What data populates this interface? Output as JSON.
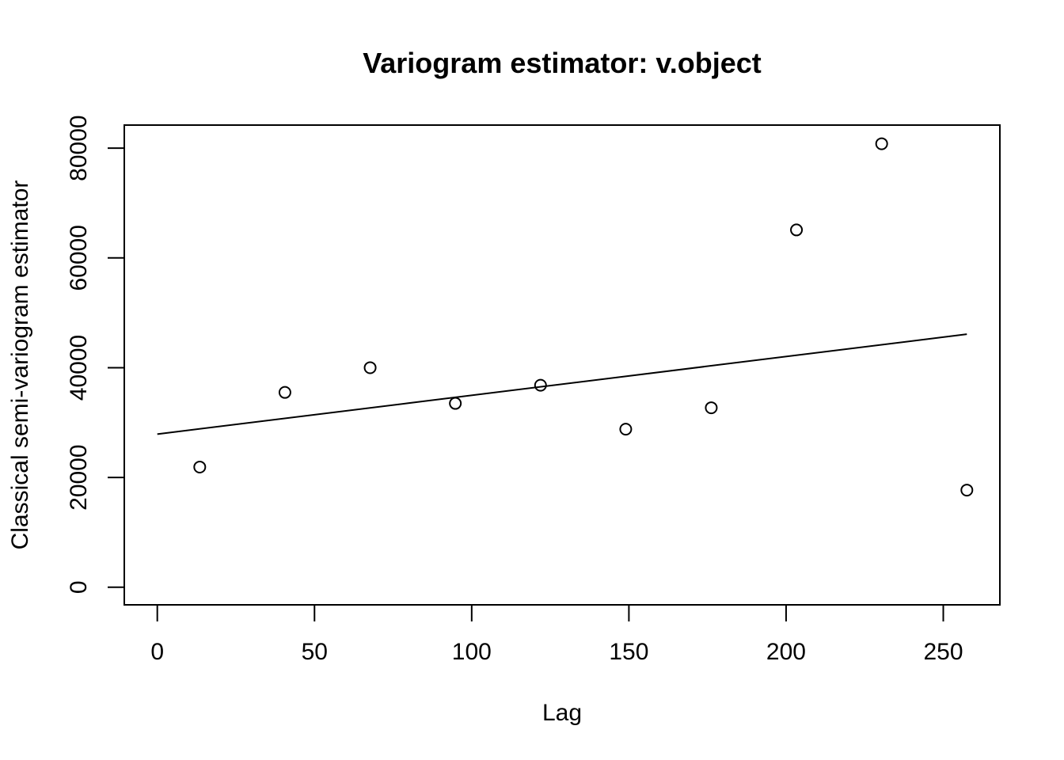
{
  "chart_data": {
    "type": "scatter",
    "title": "Variogram estimator: v.object",
    "xlabel": "Lag",
    "ylabel": "Classical semi-variogram estimator",
    "xlim": [
      -10.5,
      268
    ],
    "ylim": [
      -3200,
      84200
    ],
    "x_ticks": [
      0,
      50,
      100,
      150,
      200,
      250
    ],
    "x_tick_labels": [
      "0",
      "50",
      "100",
      "150",
      "200",
      "250"
    ],
    "y_ticks": [
      0,
      20000,
      40000,
      60000,
      80000
    ],
    "y_tick_labels": [
      "0",
      "20000",
      "40000",
      "60000",
      "80000"
    ],
    "grid": false,
    "series": [
      {
        "type": "scatter",
        "marker": "open-circle",
        "x": [
          13.5,
          40.6,
          67.7,
          94.8,
          121.9,
          149.0,
          176.2,
          203.3,
          230.4,
          257.5
        ],
        "y": [
          21900,
          35500,
          40000,
          33500,
          36800,
          28800,
          32700,
          65100,
          80800,
          17700
        ]
      },
      {
        "type": "line",
        "x": [
          0,
          257.5
        ],
        "y": [
          27900,
          46100
        ]
      }
    ]
  }
}
